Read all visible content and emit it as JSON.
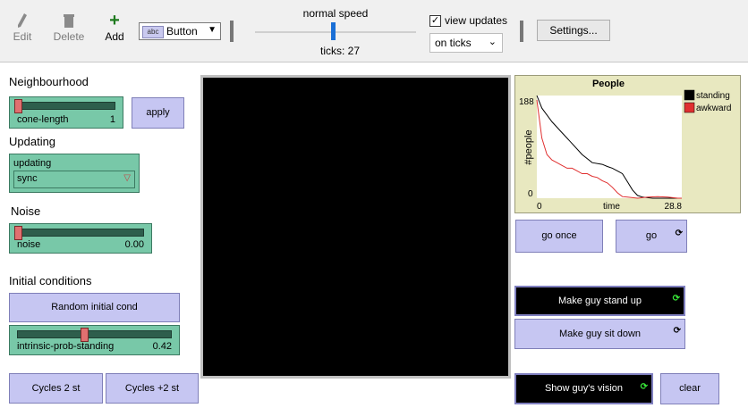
{
  "toolbar": {
    "edit_label": "Edit",
    "delete_label": "Delete",
    "add_label": "Add",
    "widget_type_tag": "abc",
    "widget_type": "Button",
    "speed_label": "normal speed",
    "ticks_text": "ticks: 27",
    "view_updates_label": "view updates",
    "update_mode": "on ticks",
    "settings_label": "Settings..."
  },
  "sections": {
    "neighbourhood": "Neighbourhood",
    "updating": "Updating",
    "noise": "Noise",
    "initial": "Initial conditions"
  },
  "sliders": {
    "cone_length": {
      "name": "cone-length",
      "value": "1",
      "position": 0.0
    },
    "noise": {
      "name": "noise",
      "value": "0.00",
      "position": 0.0
    },
    "intrinsic": {
      "name": "intrinsic-prob-standing",
      "value": "0.42",
      "position": 0.42
    }
  },
  "chooser": {
    "name": "updating",
    "value": "sync"
  },
  "buttons": {
    "apply": "apply",
    "random_init": "Random initial cond",
    "cycles2": "Cycles 2 st",
    "cycles_plus2": "Cycles +2 st",
    "go_once": "go once",
    "go": "go",
    "stand_up": "Make guy stand up",
    "sit_down": "Make guy sit down",
    "show_vision": "Show guy's vision",
    "clear": "clear"
  },
  "plot": {
    "title": "People",
    "ylabel": "#people",
    "xlabel": "time",
    "ymax_label": "188",
    "ymin_label": "0",
    "xmin_label": "0",
    "xmax_label": "28.8"
  },
  "chart_data": {
    "type": "line",
    "title": "People",
    "xlabel": "time",
    "ylabel": "#people",
    "xlim": [
      0,
      28.8
    ],
    "ylim": [
      0,
      188
    ],
    "legend": "top-right",
    "series": [
      {
        "name": "standing",
        "color": "#000000",
        "points": [
          [
            0,
            188
          ],
          [
            1,
            165
          ],
          [
            3,
            140
          ],
          [
            5,
            120
          ],
          [
            7,
            100
          ],
          [
            9,
            80
          ],
          [
            11,
            65
          ],
          [
            13,
            62
          ],
          [
            14,
            58
          ],
          [
            15,
            55
          ],
          [
            16,
            50
          ],
          [
            17,
            45
          ],
          [
            18,
            30
          ],
          [
            19,
            15
          ],
          [
            20,
            5
          ],
          [
            21,
            2
          ],
          [
            23,
            0
          ],
          [
            28.8,
            0
          ]
        ]
      },
      {
        "name": "awkward",
        "color": "#e03030",
        "points": [
          [
            0,
            180
          ],
          [
            1,
            110
          ],
          [
            2,
            80
          ],
          [
            3,
            70
          ],
          [
            4,
            65
          ],
          [
            5,
            60
          ],
          [
            6,
            55
          ],
          [
            7,
            55
          ],
          [
            8,
            50
          ],
          [
            9,
            45
          ],
          [
            10,
            45
          ],
          [
            11,
            40
          ],
          [
            12,
            38
          ],
          [
            13,
            32
          ],
          [
            14,
            28
          ],
          [
            15,
            20
          ],
          [
            16,
            10
          ],
          [
            17,
            3
          ],
          [
            18,
            2
          ],
          [
            20,
            0
          ],
          [
            22,
            2
          ],
          [
            24,
            3
          ],
          [
            26,
            2
          ],
          [
            28,
            0
          ],
          [
            28.8,
            0
          ]
        ]
      }
    ]
  }
}
